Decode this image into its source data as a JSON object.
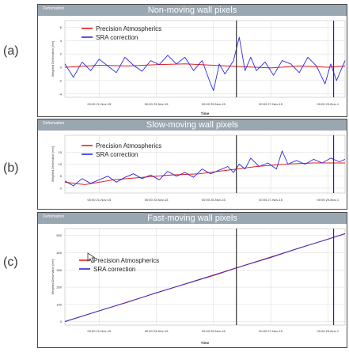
{
  "panel_letters": [
    "(a)",
    "(b)",
    "(c)"
  ],
  "panel_tag": "Deformation",
  "colors": {
    "pa": "#e02020",
    "sra": "#2a2ae0",
    "event_line": "#222222",
    "end_line": "#1b1bd8",
    "grid": "#d9d9d9",
    "header": "#9aa6b0"
  },
  "chart_data": [
    {
      "type": "line",
      "title": "Non-moving wall pixels",
      "xlabel": "Time",
      "ylabel": "Weighted Deformation [mm]",
      "x_ticks": [
        "00:00 21-Nov-15",
        "00:00 23-Nov-15",
        "00:00 25-Nov-15",
        "00:00 27-Nov-15",
        "00:00 29-Nov-1"
      ],
      "xlim": [
        19.8,
        29.6
      ],
      "ylim": [
        -4.5,
        7
      ],
      "y_ticks": [
        "6",
        "4",
        "2",
        "0",
        "-2",
        "-4"
      ],
      "y_tick_values": [
        6,
        4,
        2,
        0,
        -2,
        -4
      ],
      "event_line_x": 25.8,
      "end_line_x": 29.2,
      "legend_position": "top-left",
      "series": [
        {
          "name": "Precision Atmospherics",
          "color": "#e02020",
          "x": [
            19.8,
            21,
            22,
            23,
            24,
            25,
            26,
            27,
            28,
            29,
            29.6
          ],
          "values": [
            0,
            0.3,
            0.2,
            0.4,
            0.5,
            0.3,
            0.1,
            -0.1,
            0.2,
            0.0,
            0.2
          ]
        },
        {
          "name": "SRA correction",
          "color": "#2a2ae0",
          "x": [
            19.8,
            20.1,
            20.4,
            20.7,
            21.0,
            21.3,
            21.6,
            21.9,
            22.2,
            22.5,
            22.8,
            23.1,
            23.4,
            23.7,
            24.0,
            24.3,
            24.6,
            24.9,
            25.0,
            25.2,
            25.4,
            25.7,
            25.9,
            26.1,
            26.3,
            26.5,
            26.8,
            27.1,
            27.4,
            27.7,
            28.0,
            28.3,
            28.6,
            28.9,
            29.1,
            29.3,
            29.6
          ],
          "values": [
            0.5,
            -1.5,
            0.8,
            -0.5,
            1.2,
            0.2,
            -0.8,
            1.5,
            0.3,
            -0.6,
            1.0,
            0.4,
            1.8,
            0.5,
            1.5,
            -0.5,
            1.0,
            -2.5,
            -3.5,
            0.5,
            -1.0,
            1.0,
            4.5,
            -0.5,
            1.5,
            -0.5,
            0.8,
            -1.2,
            1.0,
            0.5,
            -0.8,
            1.5,
            0.2,
            -2.5,
            0.5,
            -2.0,
            1.0
          ]
        }
      ]
    },
    {
      "type": "line",
      "title": "Slow-moving wall pixels",
      "xlabel": "",
      "ylabel": "Weighted Deformation [mm]",
      "x_ticks": [
        "00:00 21-Nov-15",
        "00:00 23-Nov-15",
        "00:00 25-Nov-15",
        "00:00 27-Nov-15",
        "00:00 29-Nov-1"
      ],
      "xlim": [
        19.8,
        29.6
      ],
      "ylim": [
        -2,
        22
      ],
      "y_ticks": [
        "15",
        "10",
        "5",
        "0"
      ],
      "y_tick_values": [
        15,
        10,
        5,
        0
      ],
      "event_line_x": 25.8,
      "end_line_x": 29.2,
      "legend_position": "top-left",
      "series": [
        {
          "name": "Precision Atmospherics",
          "color": "#e02020",
          "x": [
            19.8,
            20.5,
            21.5,
            22.5,
            23.5,
            24.5,
            25.5,
            26.5,
            27.5,
            28.5,
            29.6
          ],
          "values": [
            2.5,
            1.5,
            3.5,
            4.5,
            5.5,
            6.0,
            7.5,
            9.0,
            10.0,
            10.5,
            10.5
          ]
        },
        {
          "name": "SRA correction",
          "color": "#2a2ae0",
          "x": [
            19.8,
            20.1,
            20.4,
            20.7,
            21.0,
            21.3,
            21.6,
            21.9,
            22.2,
            22.5,
            22.8,
            23.1,
            23.4,
            23.7,
            24.0,
            24.3,
            24.6,
            24.9,
            25.2,
            25.5,
            25.7,
            25.9,
            26.1,
            26.3,
            26.6,
            26.9,
            27.2,
            27.4,
            27.6,
            27.9,
            28.2,
            28.5,
            28.8,
            29.1,
            29.4,
            29.6
          ],
          "values": [
            3.0,
            1.0,
            4.0,
            2.0,
            3.5,
            5.0,
            2.5,
            4.5,
            6.0,
            4.0,
            5.5,
            3.5,
            7.0,
            5.0,
            6.5,
            4.5,
            8.0,
            6.0,
            7.5,
            9.0,
            6.5,
            10.0,
            8.0,
            12.5,
            9.0,
            10.5,
            8.0,
            15.5,
            10.0,
            11.5,
            10.0,
            12.0,
            10.5,
            12.5,
            11.0,
            12.0
          ]
        }
      ]
    },
    {
      "type": "line",
      "title": "Fast-moving wall pixels",
      "xlabel": "Time",
      "ylabel": "Weighted Deformation [mm]",
      "x_ticks": [
        "00:00 21-Nov-15",
        "00:00 23-Nov-15",
        "00:00 25-Nov-15",
        "00:00 27-Nov-15",
        "00:00 29-Nov-1"
      ],
      "xlim": [
        19.8,
        29.6
      ],
      "ylim": [
        -20,
        540
      ],
      "y_ticks": [
        "500",
        "400",
        "300",
        "200",
        "100",
        "0"
      ],
      "y_tick_values": [
        500,
        400,
        300,
        200,
        100,
        0
      ],
      "event_line_x": 25.8,
      "end_line_x": 29.2,
      "legend_position": "top-left",
      "series": [
        {
          "name": "Precision Atmospherics",
          "color": "#e02020",
          "x": [
            19.8,
            29.6
          ],
          "values": [
            0,
            510
          ]
        },
        {
          "name": "SRA correction",
          "color": "#2a2ae0",
          "x": [
            19.8,
            21,
            22,
            23,
            24,
            25,
            26,
            27,
            28,
            29,
            29.6
          ],
          "values": [
            1,
            63,
            113,
            168,
            218,
            268,
            322,
            372,
            428,
            478,
            511
          ]
        }
      ]
    }
  ]
}
